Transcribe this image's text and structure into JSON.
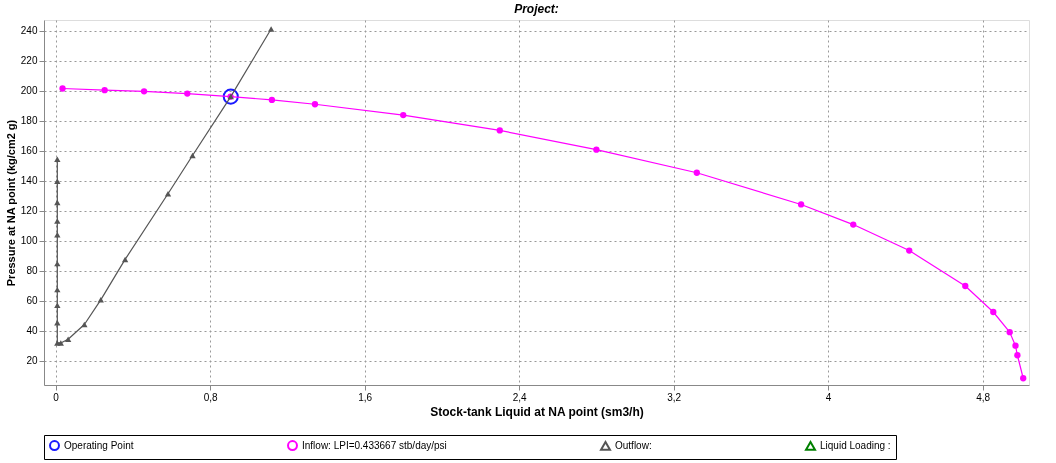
{
  "chart_data": {
    "type": "line",
    "title": "Project:",
    "xlabel": "Stock-tank Liquid at NA point (sm3/h)",
    "ylabel": "Pressure at NA point (kg/cm2 g)",
    "xlim": [
      -0.06,
      5.04
    ],
    "ylim": [
      4,
      247
    ],
    "xticks": [
      {
        "value": 0,
        "label": "0"
      },
      {
        "value": 0.8,
        "label": "0,8"
      },
      {
        "value": 1.6,
        "label": "1,6"
      },
      {
        "value": 2.4,
        "label": "2,4"
      },
      {
        "value": 3.2,
        "label": "3,2"
      },
      {
        "value": 4,
        "label": "4"
      },
      {
        "value": 4.8,
        "label": "4,8"
      }
    ],
    "yticks": [
      20,
      40,
      60,
      80,
      100,
      120,
      140,
      160,
      180,
      200,
      220,
      240
    ],
    "grid": true,
    "legend": "bottom",
    "line_style": "solid",
    "series": [
      {
        "name": "Operating Point",
        "type": "scatter",
        "color": "#1a1aff",
        "marker": "circle",
        "x": [
          0.907
        ],
        "values": [
          196
        ]
      },
      {
        "name": "Inflow: LPI=0.433667 stb/day/psi",
        "color": "#ff00ff",
        "marker": "circle",
        "x": [
          0.036,
          0.254,
          0.458,
          0.682,
          0.906,
          1.12,
          1.343,
          1.8,
          2.3,
          2.8,
          3.32,
          3.86,
          4.13,
          4.42,
          4.71,
          4.855,
          4.94,
          4.97,
          4.98,
          5.01
        ],
        "values": [
          201.4,
          200.3,
          199.5,
          198,
          196,
          193.8,
          190.9,
          183.7,
          173.5,
          160.7,
          145.3,
          124.2,
          110.8,
          93.5,
          69.9,
          52.6,
          39.2,
          30.2,
          23.8,
          8.5
        ]
      },
      {
        "name": "Outflow:",
        "color": "#555555",
        "marker": "triangle",
        "x": [
          0.009,
          0.009,
          0.009,
          0.009,
          0.009,
          0.009,
          0.009,
          0.009,
          0.009,
          0.009,
          0.027,
          0.065,
          0.149,
          0.234,
          0.36,
          0.582,
          0.709,
          0.907,
          1.116
        ],
        "values": [
          154.3,
          139.6,
          125.5,
          113.2,
          104,
          84.8,
          67.5,
          57.1,
          45.4,
          32,
          32,
          34.5,
          44.3,
          60.7,
          87.6,
          131.3,
          156.8,
          196,
          241
        ]
      },
      {
        "name": "Liquid Loading :",
        "color": "#008000",
        "marker": "triangle"
      }
    ]
  }
}
